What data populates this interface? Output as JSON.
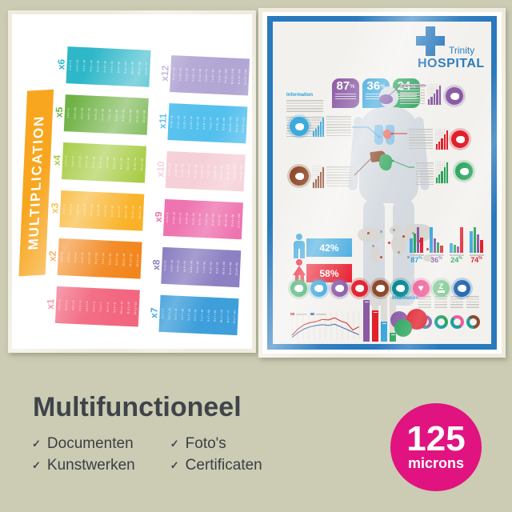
{
  "background_color": "#cbccb3",
  "multiplication_poster": {
    "title": "MULTIPLICATION",
    "ribbon_color": "#f8a61f",
    "groups": [
      [
        {
          "label": "x6",
          "color": "#2eb7c9",
          "equations": [
            "1 x 6 = 6",
            "2 x 6 = 12",
            "3 x 6 = 18",
            "4 x 6 = 24",
            "5 x 6 = 30",
            "6 x 6 = 36",
            "7 x 6 = 42",
            "8 x 6 = 48",
            "9 x 6 = 54",
            "10 x 6 = 60",
            "11 x 6 = 66",
            "12 x 6 = 72"
          ]
        },
        {
          "label": "x5",
          "color": "#6fb244",
          "equations": [
            "1 x 5 = 5",
            "2 x 5 = 10",
            "3 x 5 = 15",
            "4 x 5 = 20",
            "5 x 5 = 25",
            "6 x 5 = 30",
            "7 x 5 = 35",
            "8 x 5 = 40",
            "9 x 5 = 45",
            "10 x 5 = 50",
            "11 x 5 = 55",
            "12 x 5 = 60"
          ]
        },
        {
          "label": "x4",
          "color": "#a2c93a",
          "equations": [
            "1 x 4 = 4",
            "2 x 4 = 8",
            "3 x 4 = 12",
            "4 x 4 = 16",
            "5 x 4 = 20",
            "6 x 4 = 24",
            "7 x 4 = 28",
            "8 x 4 = 32",
            "9 x 4 = 36",
            "10 x 4 = 40",
            "11 x 4 = 44",
            "12 x 4 = 48"
          ]
        },
        {
          "label": "x3",
          "color": "#f9b021",
          "equations": [
            "1 x 3 = 3",
            "2 x 3 = 6",
            "3 x 3 = 9",
            "4 x 3 = 12",
            "5 x 3 = 15",
            "6 x 3 = 18",
            "7 x 3 = 21",
            "8 x 3 = 24",
            "9 x 3 = 27",
            "10 x 3 = 30",
            "11 x 3 = 33",
            "12 x 3 = 36"
          ]
        },
        {
          "label": "x2",
          "color": "#f2861d",
          "equations": [
            "1 x 2 = 2",
            "2 x 2 = 4",
            "3 x 2 = 6",
            "4 x 2 = 8",
            "5 x 2 = 10",
            "6 x 2 = 12",
            "7 x 2 = 14",
            "8 x 2 = 16",
            "9 x 2 = 18",
            "10 x 2 = 20",
            "11 x 2 = 22",
            "12 x 2 = 24"
          ]
        },
        {
          "label": "x1",
          "color": "#f2677f",
          "equations": [
            "1 x 1 = 1",
            "2 x 1 = 2",
            "3 x 1 = 3",
            "4 x 1 = 4",
            "5 x 1 = 5",
            "6 x 1 = 6",
            "7 x 1 = 7",
            "8 x 1 = 8",
            "9 x 1 = 9",
            "10 x 1 = 10",
            "11 x 1 = 11",
            "12 x 1 = 12"
          ]
        }
      ],
      [
        {
          "label": "x12",
          "color": "#b2a6d4",
          "equations": [
            "1 x 12 = 12",
            "2 x 12 = 24",
            "3 x 12 = 36",
            "4 x 12 = 48",
            "5 x 12 = 60",
            "6 x 12 = 72",
            "7 x 12 = 84",
            "8 x 12 = 96",
            "9 x 12 = 108",
            "10 x 12 = 120",
            "11 x 12 = 132",
            "12 x 12 = 144"
          ]
        },
        {
          "label": "x11",
          "color": "#54c0ee",
          "equations": [
            "1 x 11 = 11",
            "2 x 11 = 22",
            "3 x 11 = 33",
            "4 x 11 = 44",
            "5 x 11 = 55",
            "6 x 11 = 66",
            "7 x 11 = 77",
            "8 x 11 = 88",
            "9 x 11 = 99",
            "10 x 11 = 110",
            "11 x 11 = 121",
            "12 x 11 = 132"
          ]
        },
        {
          "label": "x10",
          "color": "#f6d0d8",
          "equations": [
            "1 x 10 = 10",
            "2 x 10 = 20",
            "3 x 10 = 30",
            "4 x 10 = 40",
            "5 x 10 = 50",
            "6 x 10 = 60",
            "7 x 10 = 70",
            "8 x 10 = 80",
            "9 x 10 = 90",
            "10 x 10 = 100",
            "11 x 10 = 110",
            "12 x 10 = 120"
          ]
        },
        {
          "label": "x9",
          "color": "#ee74b0",
          "equations": [
            "1 x 9 = 9",
            "2 x 9 = 18",
            "3 x 9 = 27",
            "4 x 9 = 36",
            "5 x 9 = 45",
            "6 x 9 = 54",
            "7 x 9 = 63",
            "8 x 9 = 72",
            "9 x 9 = 81",
            "10 x 9 = 90",
            "11 x 9 = 99",
            "12 x 9 = 108"
          ]
        },
        {
          "label": "x8",
          "color": "#8d81c3",
          "equations": [
            "1 x 8 = 8",
            "2 x 8 = 16",
            "3 x 8 = 24",
            "4 x 8 = 32",
            "5 x 8 = 40",
            "6 x 8 = 48",
            "7 x 8 = 56",
            "8 x 8 = 64",
            "9 x 8 = 72",
            "10 x 8 = 80",
            "11 x 8 = 88",
            "12 x 8 = 96"
          ]
        },
        {
          "label": "x7",
          "color": "#3e9fdb",
          "equations": [
            "1 x 7 = 7",
            "2 x 7 = 14",
            "3 x 7 = 21",
            "4 x 7 = 28",
            "5 x 7 = 35",
            "6 x 7 = 42",
            "7 x 7 = 49",
            "8 x 7 = 56",
            "9 x 7 = 63",
            "10 x 7 = 70",
            "11 x 7 = 77",
            "12 x 7 = 84"
          ]
        }
      ]
    ]
  },
  "hospital_poster": {
    "frame_color": "#2979bd",
    "brand": {
      "name": "Trinity",
      "org": "HOSPITAL"
    },
    "information_label": "Information",
    "stat_badges": [
      {
        "value": "87",
        "unit": "%",
        "color": "#8a5aa5"
      },
      {
        "value": "36",
        "unit": "%",
        "color": "#2d9fd8"
      },
      {
        "value": "24",
        "unit": "%",
        "color": "#2aa35c"
      }
    ],
    "organ_callouts": [
      {
        "organ": "brain",
        "color": "#8a5aa5"
      },
      {
        "organ": "lungs",
        "color": "#3fa9dd"
      },
      {
        "organ": "heart",
        "color": "#e0202c"
      },
      {
        "organ": "liver",
        "color": "#8d4a2c"
      },
      {
        "organ": "stomach",
        "color": "#2aa35c"
      }
    ],
    "gender_stats": [
      {
        "gender": "male",
        "value": "42%",
        "color": "#3aa6dd"
      },
      {
        "gender": "female",
        "value": "58%",
        "color": "#e81b2d"
      }
    ],
    "mini_bar_groups": [
      {
        "label": "87",
        "unit": "%",
        "label_color": "#2d9fd8",
        "bars": [
          {
            "color": "#3aa6dd",
            "h": 0.55
          },
          {
            "color": "#2aa35c",
            "h": 0.75
          },
          {
            "color": "#8a5aa5",
            "h": 1
          },
          {
            "color": "#e0202c",
            "h": 0.6
          }
        ]
      },
      {
        "label": "36",
        "unit": "%",
        "label_color": "#8a5aa5",
        "bars": [
          {
            "color": "#3aa6dd",
            "h": 1
          },
          {
            "color": "#8a5aa5",
            "h": 0.55
          },
          {
            "color": "#2aa35c",
            "h": 0.4
          },
          {
            "color": "#e0202c",
            "h": 0.28
          }
        ]
      },
      {
        "label": "24",
        "unit": "%",
        "label_color": "#2aa35c",
        "bars": [
          {
            "color": "#3aa6dd",
            "h": 0.38
          },
          {
            "color": "#2aa35c",
            "h": 0.3
          },
          {
            "color": "#8a5aa5",
            "h": 0.25
          },
          {
            "color": "#e0202c",
            "h": 1
          }
        ]
      },
      {
        "label": "74",
        "unit": "%",
        "label_color": "#e0202c",
        "bars": [
          {
            "color": "#3aa6dd",
            "h": 0.85
          },
          {
            "color": "#2aa35c",
            "h": 1
          },
          {
            "color": "#8a5aa5",
            "h": 0.72
          },
          {
            "color": "#e0202c",
            "h": 0.5
          }
        ]
      }
    ],
    "organ_icons": [
      {
        "name": "stomach",
        "color": "#2aa35c"
      },
      {
        "name": "lungs",
        "color": "#2d9fd8"
      },
      {
        "name": "brain",
        "color": "#8a5aa5"
      },
      {
        "name": "heart-organ",
        "color": "#e0202c"
      },
      {
        "name": "liver",
        "color": "#8d4a2c"
      },
      {
        "name": "tooth",
        "color": "#0e8c96"
      },
      {
        "name": "heart",
        "color": "#ee5f9a"
      },
      {
        "name": "sleep",
        "color": "#84cb98"
      },
      {
        "name": "apple",
        "color": "#2a6cb3"
      }
    ],
    "line_chart": {
      "series": [
        {
          "color": "#d63031",
          "points": [
            0.18,
            0.42,
            0.58,
            0.66,
            0.7,
            0.78,
            0.76,
            0.84,
            0.72,
            0.64,
            0.38,
            0.5
          ]
        },
        {
          "color": "#4a6fa5",
          "points": [
            0.1,
            0.28,
            0.42,
            0.5,
            0.55,
            0.58,
            0.55,
            0.6,
            0.5,
            0.4,
            0.3,
            0.2
          ]
        }
      ]
    },
    "column_chart": {
      "bars": [
        {
          "color": "#8a5aa5",
          "h": 0.93
        },
        {
          "color": "#e0202c",
          "h": 0.7
        },
        {
          "color": "#3aa6dd",
          "h": 0.45
        },
        {
          "color": "#2aa35c",
          "h": 0.2
        }
      ]
    },
    "bubble_chart": [
      {
        "color": "#8a5aa5",
        "r": 11
      },
      {
        "color": "#e0202c",
        "r": 13
      },
      {
        "color": "#2aa35c",
        "r": 11
      }
    ],
    "donut_charts": [
      {
        "color_a": "#8a5aa5",
        "color_b": "#1a9f9f",
        "pct_a": 55
      },
      {
        "color_a": "#2aa35c",
        "color_b": "#1a9f9f",
        "pct_a": 45
      },
      {
        "color_a": "#ee5f9a",
        "color_b": "#1a9f9f",
        "pct_a": 50
      },
      {
        "color_a": "#8d4a2c",
        "color_b": "#1a9f9f",
        "pct_a": 60
      }
    ]
  },
  "footer": {
    "headline": "Multifunctioneel",
    "check_icon": "✓",
    "features": [
      "Documenten",
      "Kunstwerken",
      "Foto's",
      "Certificaten"
    ],
    "badge": {
      "value": "125",
      "unit": "microns",
      "color": "#e11380"
    }
  }
}
